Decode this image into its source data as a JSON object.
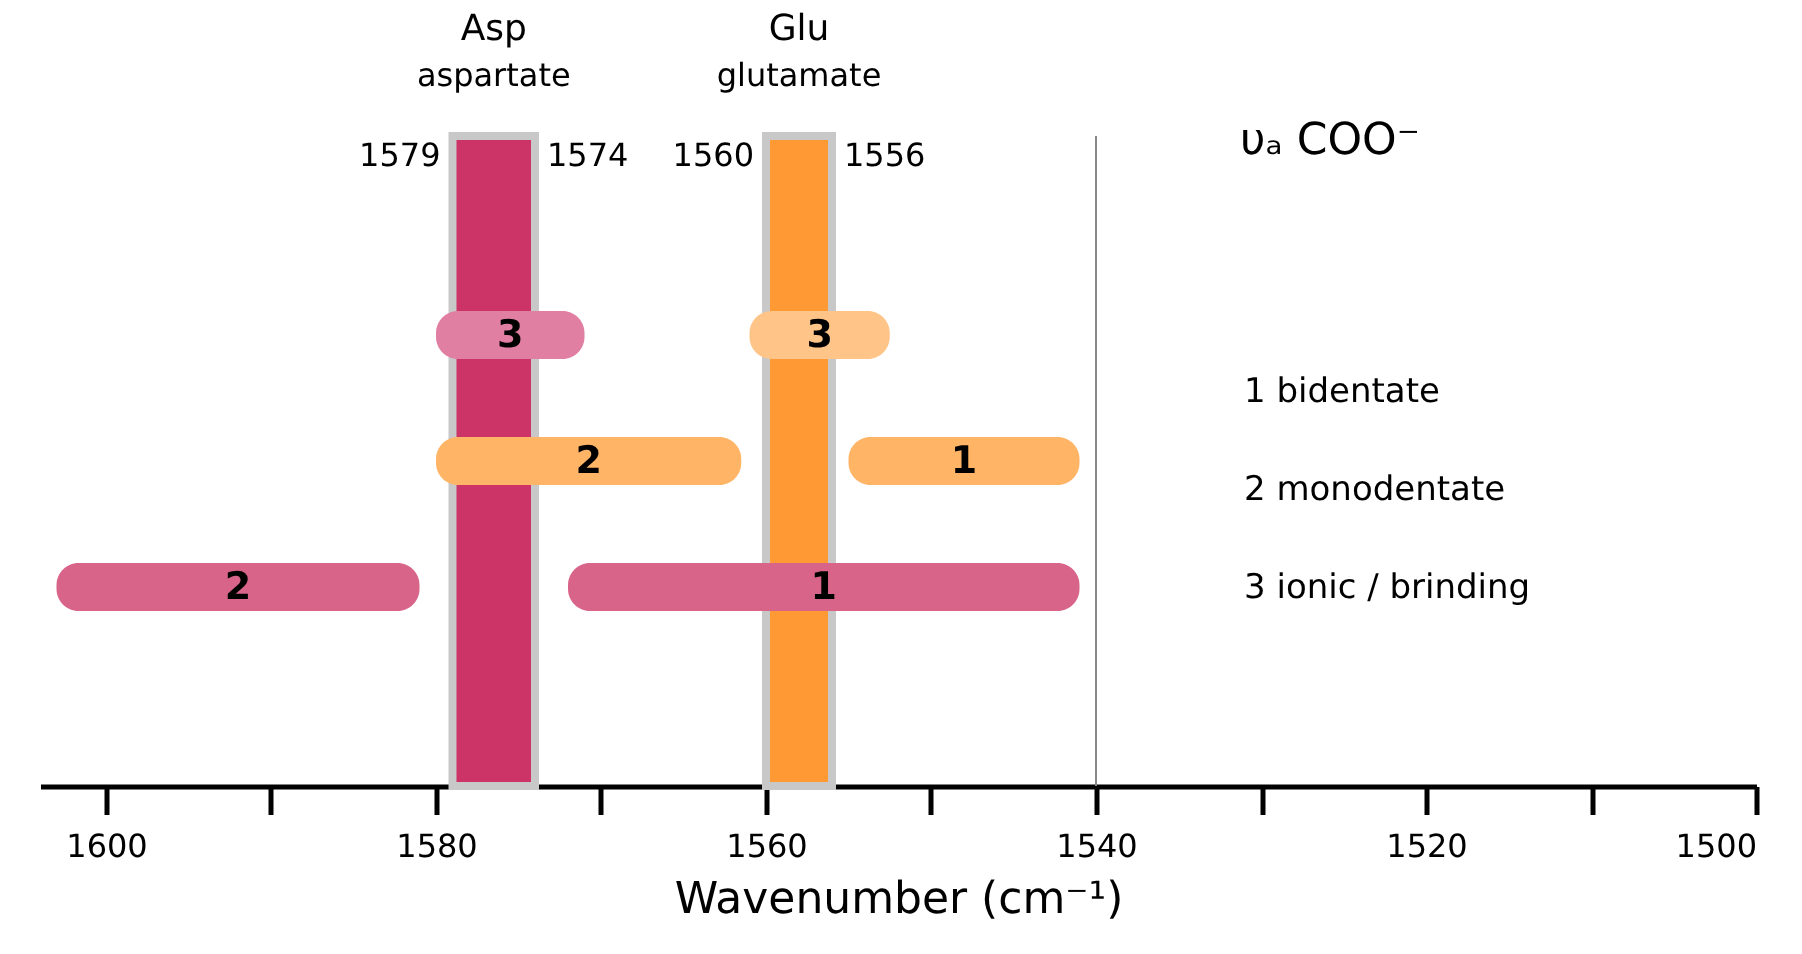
{
  "chart_data": {
    "type": "bar",
    "orientation": "horizontal",
    "title": "υₐ COO⁻",
    "xlabel": "Wavenumber (cm⁻¹)",
    "categories": [
      null,
      null,
      null,
      null,
      null
    ],
    "series": [
      {
        "name": "3",
        "values": [
          null,
          -9,
          null,
          null,
          null
        ],
        "base": [
          null,
          1580,
          null,
          null,
          null
        ],
        "color": "#e07fa2"
      },
      {
        "name": "3",
        "values": [
          null,
          -8.5,
          null,
          null,
          null
        ],
        "base": [
          null,
          1561,
          null,
          null,
          null
        ],
        "color": "#ffc487"
      },
      {
        "name": "2",
        "values": [
          null,
          null,
          -18.5,
          null,
          null
        ],
        "base": [
          null,
          null,
          1580,
          null,
          null
        ],
        "color": "#ffb466"
      },
      {
        "name": "1",
        "values": [
          null,
          null,
          -14,
          null,
          null
        ],
        "base": [
          null,
          null,
          1555,
          null,
          null
        ],
        "color": "#ffb466"
      },
      {
        "name": "2",
        "values": [
          null,
          null,
          null,
          22,
          null
        ],
        "base": [
          null,
          null,
          null,
          1581,
          null
        ],
        "color": "#d9648a"
      },
      {
        "name": "1",
        "values": [
          null,
          null,
          null,
          -31,
          null
        ],
        "base": [
          null,
          null,
          null,
          1572,
          null
        ],
        "color": "#d9648a"
      }
    ],
    "xlim": [
      1604,
      1500
    ],
    "xticks": [
      1600,
      {
        "value": 1590,
        "label": null
      },
      1580,
      {
        "value": 1570,
        "label": null
      },
      1560,
      {
        "value": 1550,
        "label": null
      },
      1540,
      {
        "value": 1530,
        "label": null
      },
      1520,
      {
        "value": 1510,
        "label": null
      },
      1500
    ],
    "bands": [
      {
        "axis": "x",
        "from": 1579,
        "to": 1574,
        "color": "#cc3366",
        "label": "Asp\naspartate"
      },
      {
        "axis": "x",
        "from": 1560,
        "to": 1556,
        "color": "#ff9933",
        "label": "Glu\nglutamate"
      }
    ],
    "ref_lines": [
      {
        "axis": "x",
        "value": 1540,
        "color": "#888888"
      }
    ],
    "annotations": [
      {
        "text": "1579",
        "x": 1579
      },
      {
        "text": "1574",
        "x": 1574
      },
      {
        "text": "1560",
        "x": 1560
      },
      {
        "text": "1556",
        "x": 1556
      },
      "1 bidentate",
      "2 monodentate",
      "3 ionic / brinding"
    ]
  }
}
